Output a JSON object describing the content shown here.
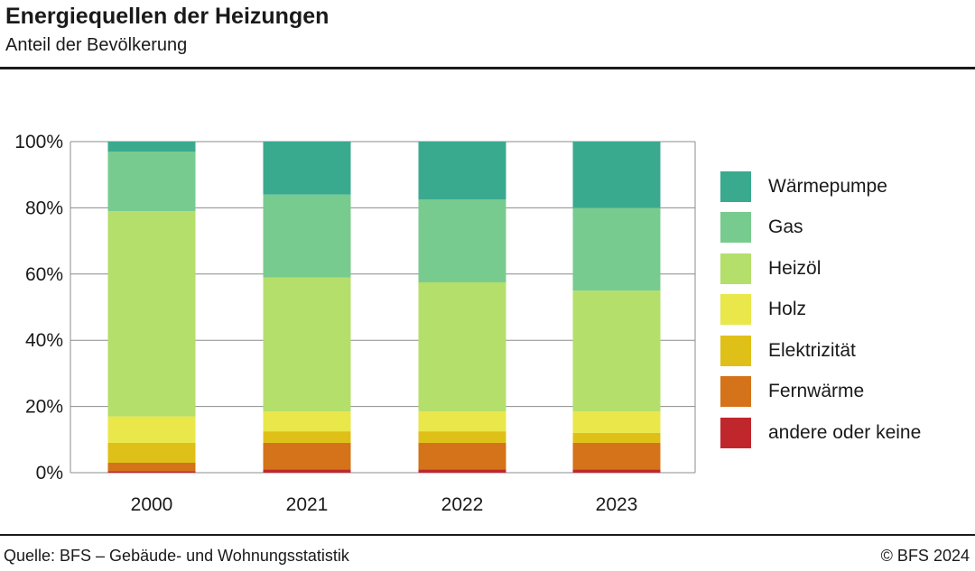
{
  "header": {
    "title": "Energiequellen der Heizungen",
    "subtitle": "Anteil der Bevölkerung"
  },
  "footer": {
    "source": "Quelle: BFS – Gebäude- und Wohnungsstatistik",
    "copyright": "© BFS 2024"
  },
  "chart_data": {
    "type": "bar",
    "stacked": true,
    "title": "Energiequellen der Heizungen",
    "subtitle": "Anteil der Bevölkerung",
    "categories": [
      "2000",
      "2021",
      "2022",
      "2023"
    ],
    "ylim": [
      0,
      100
    ],
    "yticks": [
      0,
      20,
      40,
      60,
      80,
      100
    ],
    "ytick_labels": [
      "0%",
      "20%",
      "40%",
      "60%",
      "80%",
      "100%"
    ],
    "grid": true,
    "legend_position": "right",
    "series": [
      {
        "name": "andere oder keine",
        "color": "#c0272d",
        "values": [
          0.5,
          1.0,
          1.0,
          1.0
        ]
      },
      {
        "name": "Fernwärme",
        "color": "#d4731a",
        "values": [
          2.5,
          8.0,
          8.0,
          8.0
        ]
      },
      {
        "name": "Elektrizität",
        "color": "#dfc018",
        "values": [
          6.0,
          3.5,
          3.5,
          3.0
        ]
      },
      {
        "name": "Holz",
        "color": "#e9e74a",
        "values": [
          8.0,
          6.0,
          6.0,
          6.5
        ]
      },
      {
        "name": "Heizöl",
        "color": "#b4df6a",
        "values": [
          62.0,
          40.5,
          39.0,
          36.5
        ]
      },
      {
        "name": "Gas",
        "color": "#78cb8e",
        "values": [
          18.0,
          25.0,
          25.0,
          25.0
        ]
      },
      {
        "name": "Wärmepumpe",
        "color": "#3aaa8f",
        "values": [
          3.0,
          16.0,
          17.5,
          20.0
        ]
      }
    ]
  }
}
